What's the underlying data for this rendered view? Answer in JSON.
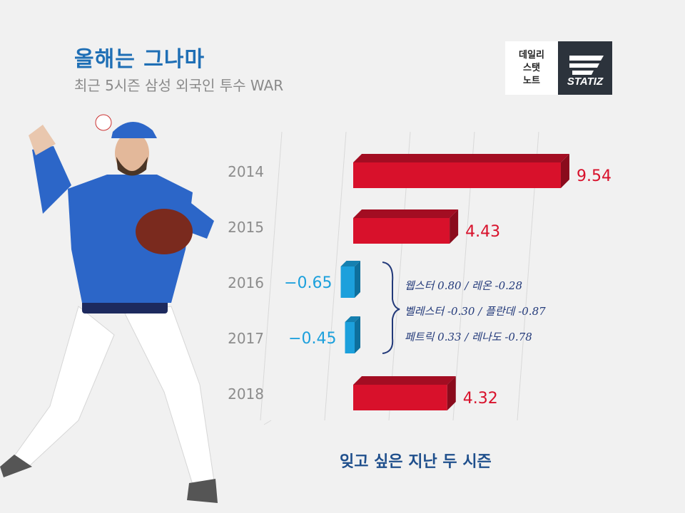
{
  "header": {
    "title": "올해는 그나마",
    "subtitle": "최근 5시즌 삼성 외국인 투수 WAR"
  },
  "brand": {
    "line1": "데일리",
    "line2": "스탯",
    "line3": "노트",
    "logo_text": "STATIZ"
  },
  "notes": [
    "웹스터 0.80 / 레온 -0.28",
    "벨레스터 -0.30 / 플란데 -0.87",
    "페트릭 0.33 / 레나도 -0.78"
  ],
  "footer": "잊고 싶은 지난 두 시즌",
  "colors": {
    "positive": "#d8112b",
    "negative": "#1ca0dc",
    "year": "#8c8c8c"
  },
  "chart_data": {
    "type": "bar",
    "orientation": "horizontal",
    "title": "올해는 그나마",
    "subtitle": "최근 5시즌 삼성 외국인 투수 WAR",
    "categories": [
      "2014",
      "2015",
      "2016",
      "2017",
      "2018"
    ],
    "values": [
      9.54,
      4.43,
      -0.65,
      -0.45,
      4.32
    ],
    "value_labels": [
      "9.54",
      "4.43",
      "−0.65",
      "−0.45",
      "4.32"
    ],
    "xlim": [
      -1,
      10
    ],
    "grid": true
  }
}
